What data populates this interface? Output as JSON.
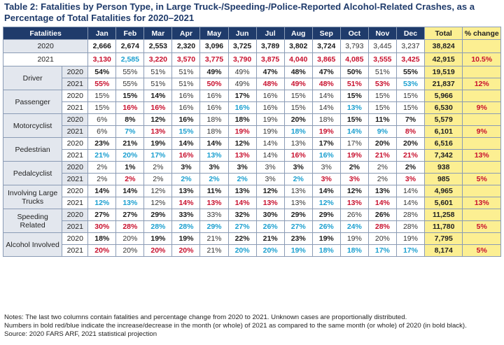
{
  "title": "Table 2: Fatalities by Person Type, in Large Truck-/Speeding-/Police-Reported Alcohol-Related Crashes, as a Percentage of Total Fatalities for 2020–2021",
  "headers": [
    "Fatalities",
    "Jan",
    "Feb",
    "Mar",
    "Apr",
    "May",
    "Jun",
    "Jul",
    "Aug",
    "Sep",
    "Oct",
    "Nov",
    "Dec",
    "Total",
    "% change"
  ],
  "totals": [
    {
      "year": "2020",
      "cells": [
        [
          "2,666",
          "b"
        ],
        [
          "2,674",
          "b"
        ],
        [
          "2,553",
          "b"
        ],
        [
          "2,320",
          "b"
        ],
        [
          "3,096",
          "b"
        ],
        [
          "3,725",
          "b"
        ],
        [
          "3,789",
          "b"
        ],
        [
          "3,802",
          "b"
        ],
        [
          "3,724",
          "b"
        ],
        [
          "3,793",
          "n"
        ],
        [
          "3,445",
          "n"
        ],
        [
          "3,237",
          "n"
        ]
      ],
      "total": "38,824",
      "change": ""
    },
    {
      "year": "2021",
      "cells": [
        [
          "3,130",
          "r"
        ],
        [
          "2,585",
          "u"
        ],
        [
          "3,220",
          "r"
        ],
        [
          "3,570",
          "r"
        ],
        [
          "3,775",
          "r"
        ],
        [
          "3,790",
          "r"
        ],
        [
          "3,875",
          "r"
        ],
        [
          "4,040",
          "r"
        ],
        [
          "3,865",
          "r"
        ],
        [
          "4,085",
          "r"
        ],
        [
          "3,555",
          "r"
        ],
        [
          "3,425",
          "r"
        ]
      ],
      "total": "42,915",
      "change": "10.5%"
    }
  ],
  "groups": [
    {
      "label": "Driver",
      "rows": [
        {
          "year": "2020",
          "cells": [
            [
              "54%",
              "b"
            ],
            [
              "55%",
              "n"
            ],
            [
              "51%",
              "n"
            ],
            [
              "51%",
              "n"
            ],
            [
              "49%",
              "b"
            ],
            [
              "49%",
              "n"
            ],
            [
              "47%",
              "b"
            ],
            [
              "48%",
              "b"
            ],
            [
              "47%",
              "b"
            ],
            [
              "50%",
              "b"
            ],
            [
              "51%",
              "n"
            ],
            [
              "55%",
              "b"
            ]
          ],
          "total": "19,519",
          "change": ""
        },
        {
          "year": "2021",
          "cells": [
            [
              "55%",
              "r"
            ],
            [
              "55%",
              "n"
            ],
            [
              "51%",
              "n"
            ],
            [
              "51%",
              "n"
            ],
            [
              "50%",
              "r"
            ],
            [
              "49%",
              "n"
            ],
            [
              "48%",
              "r"
            ],
            [
              "49%",
              "r"
            ],
            [
              "48%",
              "r"
            ],
            [
              "51%",
              "r"
            ],
            [
              "53%",
              "r"
            ],
            [
              "53%",
              "u"
            ]
          ],
          "total": "21,837",
          "change": "12%"
        }
      ]
    },
    {
      "label": "Passenger",
      "rows": [
        {
          "year": "2020",
          "cells": [
            [
              "15%",
              "n"
            ],
            [
              "15%",
              "b"
            ],
            [
              "14%",
              "b"
            ],
            [
              "16%",
              "n"
            ],
            [
              "16%",
              "n"
            ],
            [
              "17%",
              "b"
            ],
            [
              "16%",
              "n"
            ],
            [
              "15%",
              "n"
            ],
            [
              "14%",
              "n"
            ],
            [
              "15%",
              "b"
            ],
            [
              "15%",
              "n"
            ],
            [
              "15%",
              "n"
            ]
          ],
          "total": "5,966",
          "change": ""
        },
        {
          "year": "2021",
          "cells": [
            [
              "15%",
              "n"
            ],
            [
              "16%",
              "r"
            ],
            [
              "16%",
              "r"
            ],
            [
              "16%",
              "n"
            ],
            [
              "16%",
              "n"
            ],
            [
              "16%",
              "u"
            ],
            [
              "16%",
              "n"
            ],
            [
              "15%",
              "n"
            ],
            [
              "14%",
              "n"
            ],
            [
              "13%",
              "u"
            ],
            [
              "15%",
              "n"
            ],
            [
              "15%",
              "n"
            ]
          ],
          "total": "6,530",
          "change": "9%"
        }
      ]
    },
    {
      "label": "Motorcyclist",
      "rows": [
        {
          "year": "2020",
          "cells": [
            [
              "6%",
              "n"
            ],
            [
              "8%",
              "b"
            ],
            [
              "12%",
              "b"
            ],
            [
              "16%",
              "b"
            ],
            [
              "18%",
              "n"
            ],
            [
              "18%",
              "b"
            ],
            [
              "19%",
              "n"
            ],
            [
              "20%",
              "b"
            ],
            [
              "18%",
              "n"
            ],
            [
              "15%",
              "b"
            ],
            [
              "11%",
              "b"
            ],
            [
              "7%",
              "b"
            ]
          ],
          "total": "5,579",
          "change": ""
        },
        {
          "year": "2021",
          "cells": [
            [
              "6%",
              "n"
            ],
            [
              "7%",
              "u"
            ],
            [
              "13%",
              "r"
            ],
            [
              "15%",
              "u"
            ],
            [
              "18%",
              "n"
            ],
            [
              "19%",
              "r"
            ],
            [
              "19%",
              "n"
            ],
            [
              "18%",
              "u"
            ],
            [
              "19%",
              "r"
            ],
            [
              "14%",
              "u"
            ],
            [
              "9%",
              "u"
            ],
            [
              "8%",
              "r"
            ]
          ],
          "total": "6,101",
          "change": "9%"
        }
      ]
    },
    {
      "label": "Pedestrian",
      "rows": [
        {
          "year": "2020",
          "cells": [
            [
              "23%",
              "b"
            ],
            [
              "21%",
              "b"
            ],
            [
              "19%",
              "b"
            ],
            [
              "14%",
              "b"
            ],
            [
              "14%",
              "b"
            ],
            [
              "12%",
              "b"
            ],
            [
              "14%",
              "n"
            ],
            [
              "13%",
              "n"
            ],
            [
              "17%",
              "b"
            ],
            [
              "17%",
              "n"
            ],
            [
              "20%",
              "b"
            ],
            [
              "20%",
              "b"
            ]
          ],
          "total": "6,516",
          "change": ""
        },
        {
          "year": "2021",
          "cells": [
            [
              "21%",
              "u"
            ],
            [
              "20%",
              "u"
            ],
            [
              "17%",
              "u"
            ],
            [
              "16%",
              "r"
            ],
            [
              "13%",
              "u"
            ],
            [
              "13%",
              "r"
            ],
            [
              "14%",
              "n"
            ],
            [
              "16%",
              "r"
            ],
            [
              "16%",
              "u"
            ],
            [
              "19%",
              "r"
            ],
            [
              "21%",
              "r"
            ],
            [
              "21%",
              "r"
            ]
          ],
          "total": "7,342",
          "change": "13%"
        }
      ]
    },
    {
      "label": "Pedalcyclist",
      "rows": [
        {
          "year": "2020",
          "cells": [
            [
              "2%",
              "n"
            ],
            [
              "1%",
              "b"
            ],
            [
              "2%",
              "n"
            ],
            [
              "3%",
              "b"
            ],
            [
              "3%",
              "b"
            ],
            [
              "3%",
              "b"
            ],
            [
              "3%",
              "n"
            ],
            [
              "3%",
              "b"
            ],
            [
              "3%",
              "n"
            ],
            [
              "2%",
              "b"
            ],
            [
              "2%",
              "n"
            ],
            [
              "2%",
              "b"
            ]
          ],
          "total": "938",
          "change": ""
        },
        {
          "year": "2021",
          "cells": [
            [
              "2%",
              "n"
            ],
            [
              "2%",
              "r"
            ],
            [
              "2%",
              "n"
            ],
            [
              "2%",
              "u"
            ],
            [
              "2%",
              "u"
            ],
            [
              "2%",
              "u"
            ],
            [
              "3%",
              "n"
            ],
            [
              "2%",
              "u"
            ],
            [
              "3%",
              "r"
            ],
            [
              "3%",
              "r"
            ],
            [
              "2%",
              "n"
            ],
            [
              "3%",
              "r"
            ]
          ],
          "total": "985",
          "change": "5%"
        }
      ]
    },
    {
      "label": "Involving Large Trucks",
      "rows": [
        {
          "year": "2020",
          "cells": [
            [
              "14%",
              "b"
            ],
            [
              "14%",
              "b"
            ],
            [
              "12%",
              "n"
            ],
            [
              "13%",
              "b"
            ],
            [
              "11%",
              "b"
            ],
            [
              "13%",
              "b"
            ],
            [
              "12%",
              "b"
            ],
            [
              "13%",
              "n"
            ],
            [
              "14%",
              "b"
            ],
            [
              "12%",
              "b"
            ],
            [
              "13%",
              "b"
            ],
            [
              "14%",
              "n"
            ]
          ],
          "total": "4,965",
          "change": ""
        },
        {
          "year": "2021",
          "cells": [
            [
              "12%",
              "u"
            ],
            [
              "13%",
              "u"
            ],
            [
              "12%",
              "n"
            ],
            [
              "14%",
              "r"
            ],
            [
              "13%",
              "r"
            ],
            [
              "14%",
              "r"
            ],
            [
              "13%",
              "r"
            ],
            [
              "13%",
              "n"
            ],
            [
              "12%",
              "u"
            ],
            [
              "13%",
              "r"
            ],
            [
              "14%",
              "r"
            ],
            [
              "14%",
              "n"
            ]
          ],
          "total": "5,601",
          "change": "13%"
        }
      ]
    },
    {
      "label": "Speeding Related",
      "rows": [
        {
          "year": "2020",
          "cells": [
            [
              "27%",
              "b"
            ],
            [
              "27%",
              "b"
            ],
            [
              "29%",
              "b"
            ],
            [
              "33%",
              "b"
            ],
            [
              "33%",
              "n"
            ],
            [
              "32%",
              "b"
            ],
            [
              "30%",
              "b"
            ],
            [
              "29%",
              "b"
            ],
            [
              "29%",
              "b"
            ],
            [
              "26%",
              "n"
            ],
            [
              "26%",
              "b"
            ],
            [
              "28%",
              "n"
            ]
          ],
          "total": "11,258",
          "change": ""
        },
        {
          "year": "2021",
          "cells": [
            [
              "30%",
              "r"
            ],
            [
              "28%",
              "r"
            ],
            [
              "28%",
              "u"
            ],
            [
              "28%",
              "u"
            ],
            [
              "29%",
              "u"
            ],
            [
              "27%",
              "u"
            ],
            [
              "26%",
              "u"
            ],
            [
              "27%",
              "u"
            ],
            [
              "26%",
              "u"
            ],
            [
              "24%",
              "u"
            ],
            [
              "28%",
              "r"
            ],
            [
              "28%",
              "n"
            ]
          ],
          "total": "11,780",
          "change": "5%"
        }
      ]
    },
    {
      "label": "Alcohol Involved",
      "rows": [
        {
          "year": "2020",
          "cells": [
            [
              "18%",
              "b"
            ],
            [
              "20%",
              "n"
            ],
            [
              "19%",
              "b"
            ],
            [
              "19%",
              "b"
            ],
            [
              "21%",
              "n"
            ],
            [
              "22%",
              "b"
            ],
            [
              "21%",
              "b"
            ],
            [
              "23%",
              "b"
            ],
            [
              "19%",
              "b"
            ],
            [
              "19%",
              "n"
            ],
            [
              "20%",
              "n"
            ],
            [
              "19%",
              "n"
            ]
          ],
          "total": "7,795",
          "change": ""
        },
        {
          "year": "2021",
          "cells": [
            [
              "20%",
              "r"
            ],
            [
              "20%",
              "n"
            ],
            [
              "20%",
              "r"
            ],
            [
              "20%",
              "r"
            ],
            [
              "21%",
              "n"
            ],
            [
              "20%",
              "u"
            ],
            [
              "20%",
              "u"
            ],
            [
              "19%",
              "u"
            ],
            [
              "18%",
              "u"
            ],
            [
              "18%",
              "u"
            ],
            [
              "17%",
              "u"
            ],
            [
              "17%",
              "u"
            ]
          ],
          "total": "8,174",
          "change": "5%"
        }
      ]
    }
  ],
  "notes": [
    "Notes: The last two columns contain fatalities and percentage change from 2020 to 2021. Unknown cases are proportionally distributed.",
    "Numbers in bold red/blue indicate the increase/decrease in the month (or whole) of 2021 as compared to the same month (or whole) of 2020 (in bold black).",
    "Source: 2020 FARS ARF, 2021 statistical projection"
  ],
  "colors": {
    "header_bg": "#1f3b6b",
    "increase": "#c8102e",
    "decrease": "#1a9fd0",
    "total_col_bg": "#fcef92",
    "group_bg": "#e3e7ee"
  }
}
